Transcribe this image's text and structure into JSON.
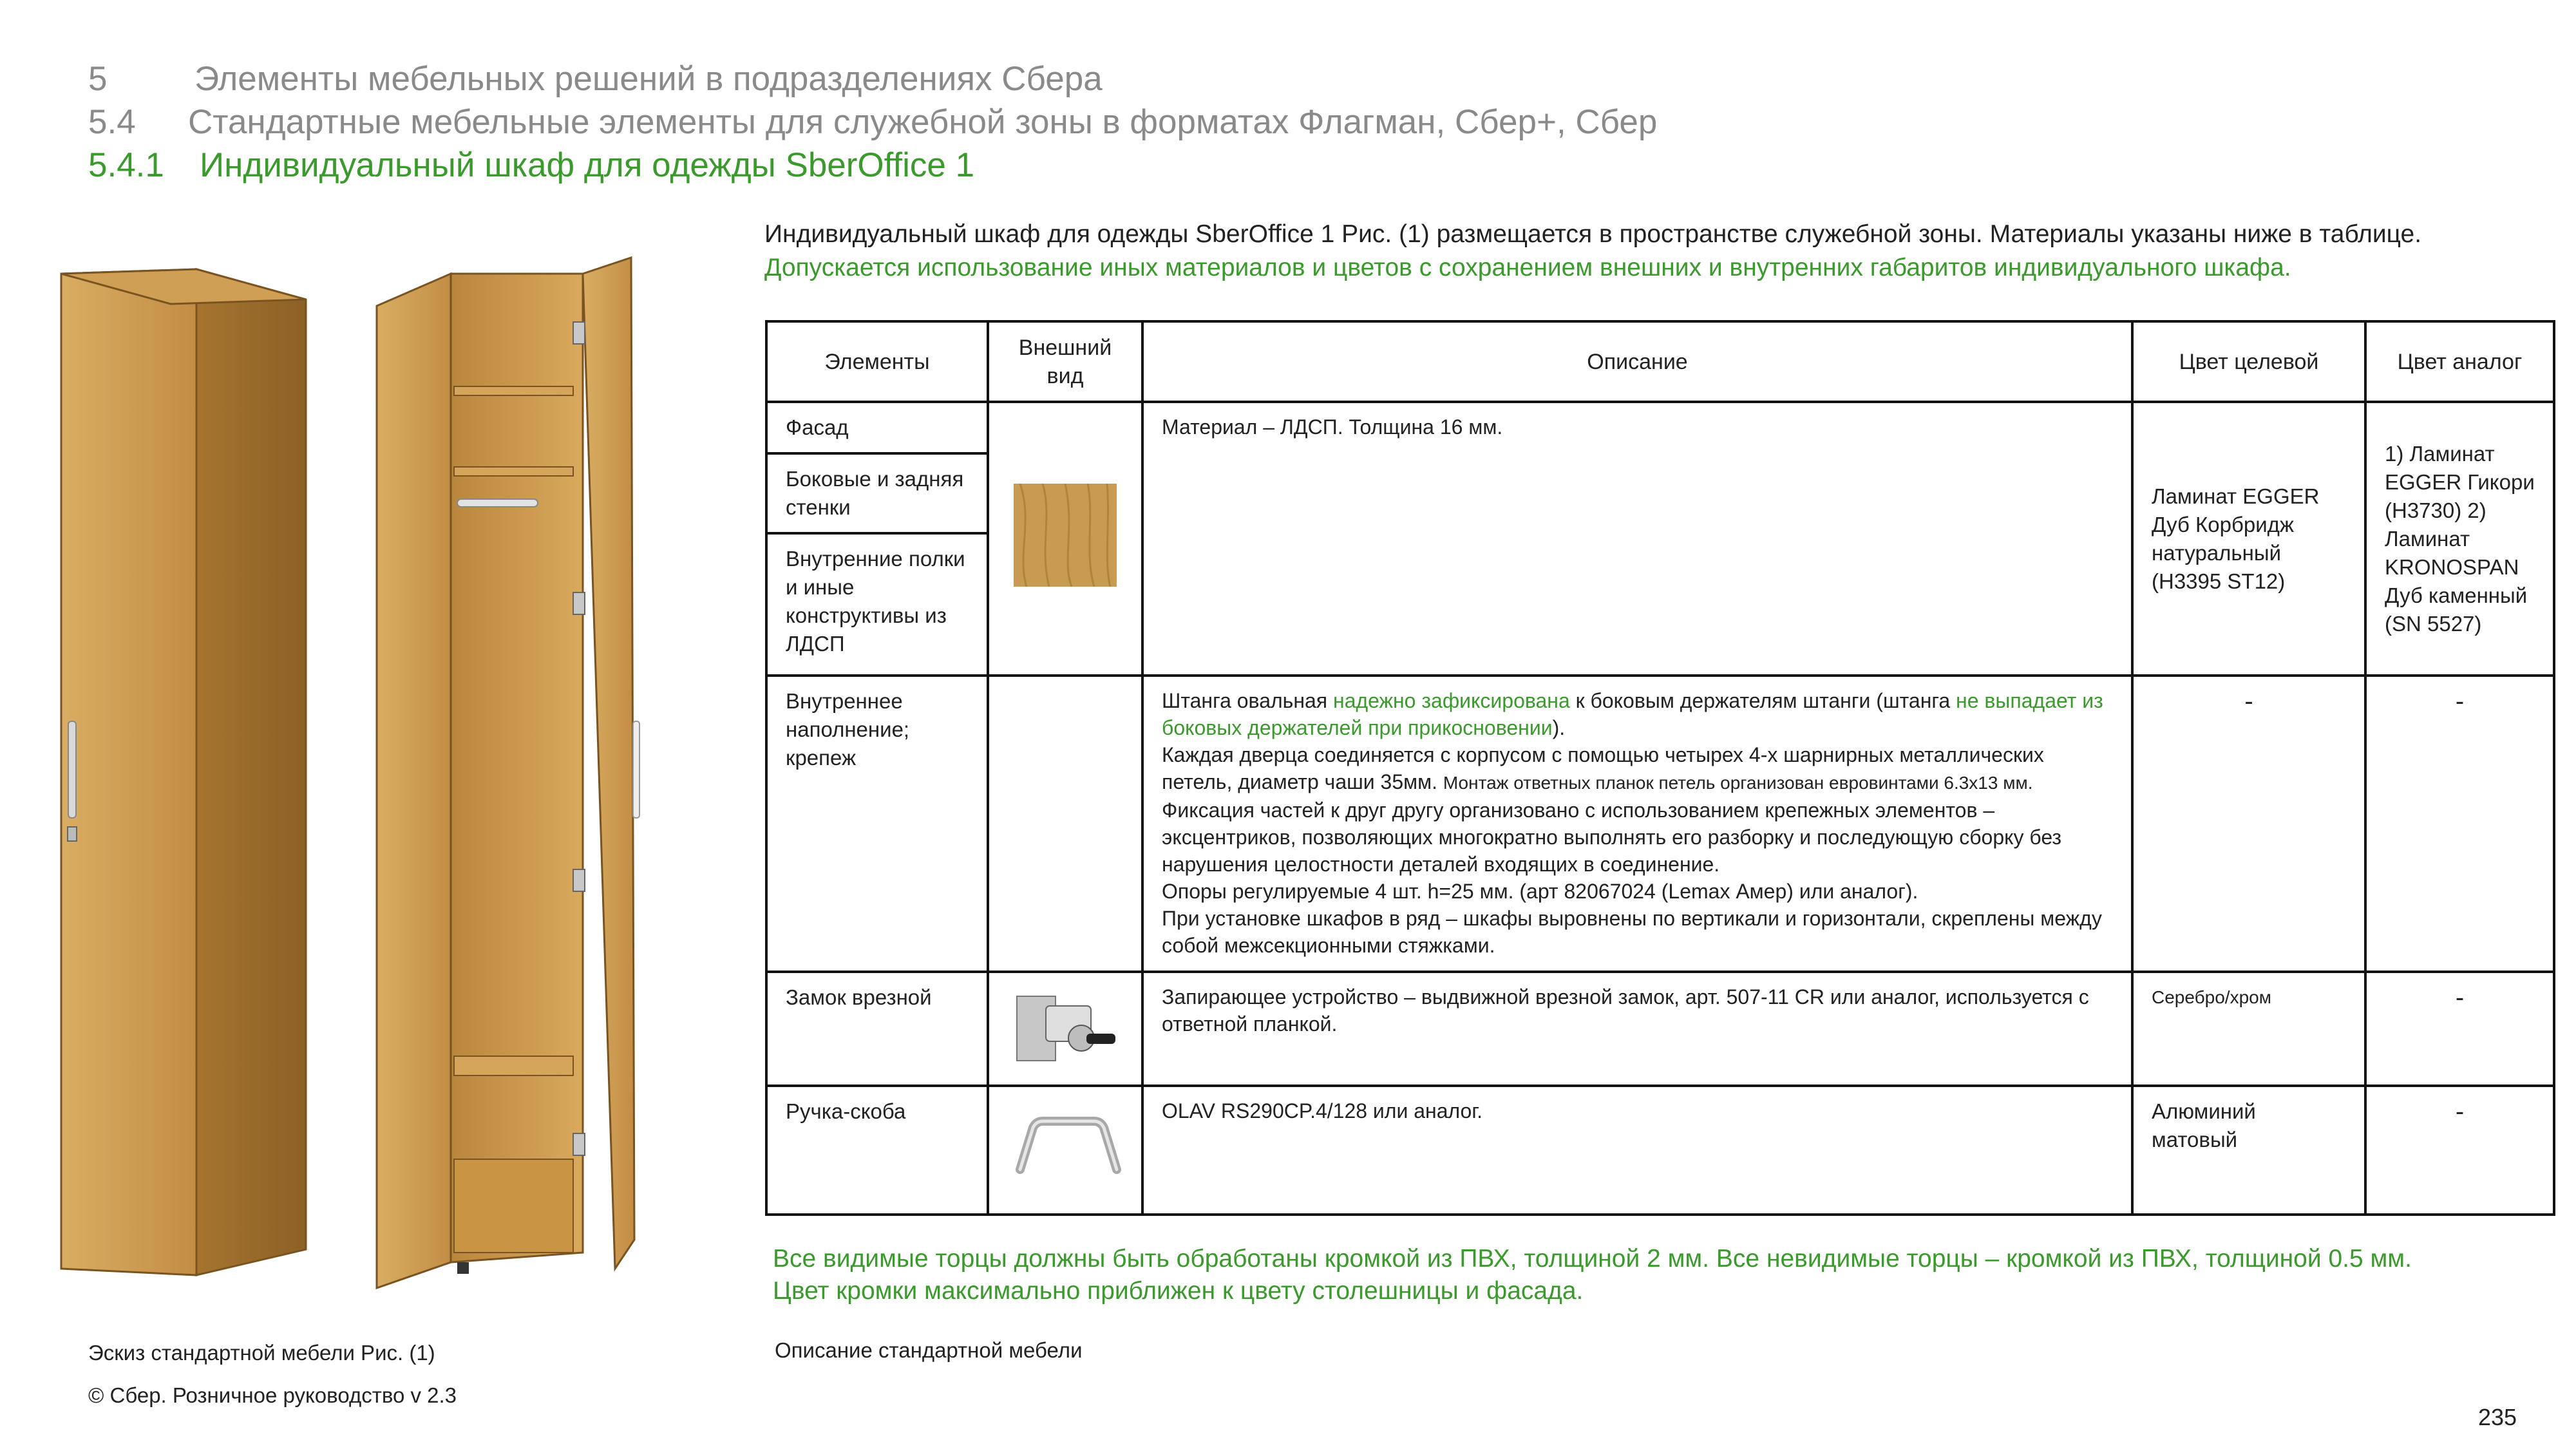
{
  "header": {
    "line1": {
      "num": "5",
      "title": "Элементы мебельных решений в подразделениях Сбера"
    },
    "line2": {
      "num": "5.4",
      "title": "Стандартные мебельные элементы для служебной зоны в форматах Флагман, Сбер+, Сбер"
    },
    "line3": {
      "num": "5.4.1",
      "title": "Индивидуальный шкаф для одежды SberOffice 1"
    }
  },
  "intro": {
    "part1": "Индивидуальный шкаф для одежды SberOffice 1 Рис. (1) размещается в пространстве служебной зоны. Материалы указаны ниже в таблице.",
    "part2": "Допускается использование иных материалов и цветов с сохранением внешних и внутренних габаритов индивидуального шкафа."
  },
  "table": {
    "headers": {
      "elements": "Элементы",
      "appearance": "Внешний вид",
      "description": "Описание",
      "target_color": "Цвет целевой",
      "analog_color": "Цвет аналог"
    },
    "row1": {
      "facade": "Фасад",
      "side": "Боковые и задняя стенки",
      "inner": "Внутренние полки и иные конструктивы из ЛДСП",
      "description": "Материал – ЛДСП. Толщина 16 мм.",
      "target": "Ламинат EGGER Дуб Корбридж натуральный (H3395 ST12)",
      "analog": "1) Ламинат EGGER Гикори (H3730) 2) Ламинат KRONOSPAN Дуб каменный (SN 5527)"
    },
    "row2": {
      "element": "Внутреннее наполнение; крепеж",
      "d1": "Штанга овальная",
      "d1g": "надежно зафиксирована",
      "d2": "к боковым держателям штанги (штанга",
      "d2g": "не выпадает из боковых держателей при прикосновении",
      "d3": ").",
      "d4": "Каждая дверца соединяется с корпусом с помощью четырех 4-х шарнирных металлических петель, диаметр чаши 35мм.",
      "d5": "Монтаж ответных планок петель организован евровинтами 6.3х13 мм.",
      "d6": "Фиксация частей к друг другу организовано с использованием крепежных элементов – эксцентриков, позволяющих многократно выполнять его разборку и последующую сборку без нарушения целостности деталей входящих в соединение.",
      "d7": "Опоры регулируемые 4 шт. h=25 мм. (арт 82067024 (Lemax Амер) или аналог).",
      "d8": "При установке шкафов в ряд – шкафы выровнены по вертикали и горизонтали, скреплены между собой межсекционными стяжками.",
      "target": "-",
      "analog": "-"
    },
    "row3": {
      "element": "Замок врезной",
      "description": "Запирающее устройство – выдвижной врезной замок, арт. 507-11 CR или аналог, используется с ответной планкой.",
      "target": "Серебро/хром",
      "analog": "-"
    },
    "row4": {
      "element": "Ручка-скоба",
      "description": "OLAV RS290CP.4/128 или аналог.",
      "target": "Алюминий матовый",
      "analog": "-"
    }
  },
  "note": {
    "line1": "Все видимые торцы должны быть обработаны кромкой из ПВХ, толщиной 2 мм. Все невидимые торцы – кромкой из ПВХ, толщиной 0.5 мм.",
    "line2": "Цвет кромки максимально приближен к цвету столешницы и фасада."
  },
  "captions": {
    "sketch": "Эскиз стандартной мебели Рис. (1)",
    "description": "Описание  стандартной мебели",
    "copyright": "© Сбер. Розничное руководство  v 2.3",
    "page": "235"
  },
  "colors": {
    "green": "#3a9a2c",
    "gray": "#8a8a8a",
    "wood": "#c79a52"
  }
}
